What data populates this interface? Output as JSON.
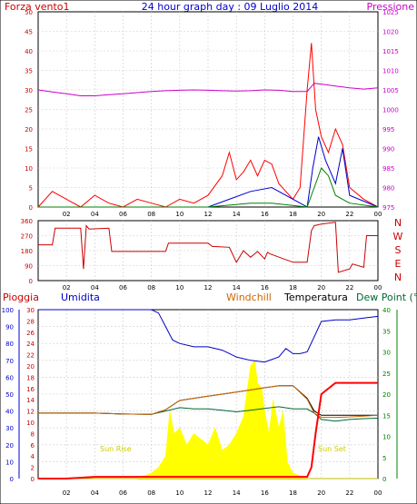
{
  "top_panel": {
    "left_title": "Forza vento1",
    "center_title": "24 hour graph day : 09 Luglio 2014",
    "right_title": "Pressione",
    "left_ticks": [
      "0",
      "5",
      "10",
      "15",
      "20",
      "25",
      "30",
      "35",
      "40",
      "45",
      "50"
    ],
    "right_ticks": [
      "975",
      "980",
      "985",
      "990",
      "995",
      "1000",
      "1005",
      "1010",
      "1015",
      "1020",
      "1025"
    ],
    "x_ticks": [
      "02",
      "04",
      "06",
      "08",
      "10",
      "12",
      "14",
      "16",
      "18",
      "20",
      "22",
      "00"
    ]
  },
  "mid_panel": {
    "left_ticks": [
      "0",
      "90",
      "180",
      "270",
      "360"
    ],
    "right_letters": [
      "N",
      "W",
      "S",
      "E",
      "N"
    ],
    "x_ticks": [
      "02",
      "04",
      "06",
      "08",
      "10",
      "12",
      "14",
      "16",
      "18",
      "20",
      "22",
      "00"
    ]
  },
  "bottom_panel": {
    "headers": {
      "rain": "Pioggia",
      "humidity": "Umidita",
      "windchill": "Windchill",
      "temperature": "Temperatura",
      "dewpoint": "Dew Point (°C"
    },
    "humidity_ticks": [
      "0",
      "10",
      "20",
      "30",
      "40",
      "50",
      "60",
      "70",
      "80",
      "90",
      "100"
    ],
    "rain_ticks": [
      "0",
      "2",
      "4",
      "6",
      "8",
      "10",
      "12",
      "14",
      "16",
      "18",
      "20",
      "22",
      "24",
      "26",
      "28",
      "30"
    ],
    "temp_ticks": [
      "0",
      "5",
      "10",
      "15",
      "20",
      "25",
      "30",
      "35",
      "40"
    ],
    "x_ticks": [
      "02",
      "04",
      "06",
      "08",
      "10",
      "12",
      "14",
      "16",
      "18",
      "20",
      "22",
      "00"
    ],
    "sun_rise": "Sun Rise",
    "sun_set": "Sun Set"
  },
  "colors": {
    "wind": "#ff0000",
    "gust": "#0000cc",
    "wind_alt": "#008000",
    "pressure": "#cc00cc",
    "direction": "#cc0000",
    "humidity": "#0000cc",
    "temperature": "#000000",
    "dewpoint": "#006633",
    "windchill": "#cc6600",
    "rain": "#ff0000",
    "solar": "#ffff00",
    "axis_humidity": "#0000cc",
    "axis_rain": "#cc0000",
    "axis_temp": "#008000"
  },
  "chart_data": [
    {
      "type": "line",
      "title": "24 hour graph day : 09 Luglio 2014",
      "x_hours": [
        0,
        24
      ],
      "left_axis": {
        "label": "Forza vento1",
        "ylim": [
          0,
          50
        ]
      },
      "right_axis": {
        "label": "Pressione",
        "ylim": [
          975,
          1025
        ]
      },
      "series": [
        {
          "name": "Pressione",
          "axis": "right",
          "x": [
            0,
            1,
            2,
            3,
            4,
            5,
            6,
            7,
            8,
            9,
            10,
            11,
            12,
            13,
            14,
            15,
            16,
            17,
            18,
            19,
            19.5,
            20,
            21,
            22,
            23,
            24
          ],
          "values": [
            1005,
            1004.5,
            1004,
            1003.5,
            1003.5,
            1003.8,
            1004,
            1004.3,
            1004.6,
            1004.8,
            1004.9,
            1005,
            1004.9,
            1004.8,
            1004.7,
            1004.8,
            1005,
            1004.9,
            1004.6,
            1004.6,
            1006.7,
            1006.5,
            1006,
            1005.5,
            1005.2,
            1005.5
          ]
        },
        {
          "name": "Forza vento1",
          "axis": "left",
          "x": [
            0,
            1,
            2,
            3,
            4,
            5,
            6,
            7,
            8,
            9,
            10,
            11,
            12,
            13,
            13.5,
            14,
            14.5,
            15,
            15.5,
            16,
            16.5,
            17,
            18,
            18.5,
            19,
            19.3,
            19.6,
            20,
            20.5,
            21,
            21.5,
            22,
            23,
            24
          ],
          "values": [
            0,
            4,
            2,
            0,
            3,
            1,
            0,
            2,
            1,
            0,
            2,
            1,
            3,
            8,
            14,
            7,
            9,
            12,
            8,
            12,
            11,
            6,
            2,
            5,
            30,
            42,
            25,
            18,
            14,
            20,
            16,
            5,
            2,
            0
          ]
        },
        {
          "name": "",
          "axis": "left",
          "x": [
            0,
            6,
            12,
            15,
            16.5,
            19,
            19.4,
            19.8,
            20.3,
            21,
            21.5,
            22,
            24
          ],
          "values": [
            0,
            0,
            0,
            4,
            5,
            0,
            10,
            18,
            12,
            6,
            15,
            3,
            0
          ]
        },
        {
          "name": "",
          "axis": "left",
          "x": [
            0,
            12,
            15,
            16.5,
            19,
            19.5,
            20,
            20.5,
            21,
            22,
            24
          ],
          "values": [
            0,
            0,
            1,
            1,
            0,
            5,
            10,
            8,
            3,
            1,
            0
          ]
        }
      ]
    },
    {
      "type": "line",
      "title": "",
      "x_hours": [
        0,
        24
      ],
      "ylim": [
        0,
        360
      ],
      "series": [
        {
          "name": "",
          "x": [
            0,
            1,
            1.2,
            3,
            3.2,
            3.4,
            3.6,
            5,
            5.2,
            9,
            9.2,
            12,
            12.3,
            13.5,
            14,
            14.5,
            15,
            15.5,
            16,
            16.2,
            16.4,
            18,
            18.2,
            19,
            19.3,
            19.5,
            20,
            21,
            21.2,
            22,
            22.2,
            23,
            23.2,
            24
          ],
          "values": [
            215,
            215,
            315,
            315,
            70,
            330,
            310,
            315,
            175,
            175,
            225,
            225,
            205,
            200,
            110,
            180,
            140,
            175,
            130,
            170,
            160,
            110,
            110,
            110,
            300,
            330,
            340,
            350,
            50,
            70,
            100,
            80,
            270,
            270
          ]
        }
      ]
    },
    {
      "type": "area",
      "title": "",
      "x_hours": [
        0,
        24
      ],
      "series": [
        {
          "name": "Umidita",
          "axis": "humidity",
          "ylim": [
            0,
            100
          ],
          "x": [
            0,
            2,
            4,
            6,
            8,
            8.5,
            9,
            9.5,
            10,
            11,
            12,
            13,
            14,
            15,
            16,
            17,
            17.5,
            18,
            18.5,
            19,
            19.5,
            20,
            21,
            22,
            23,
            24
          ],
          "values": [
            100,
            100,
            100,
            100,
            100,
            98,
            90,
            82,
            80,
            78,
            78,
            76,
            72,
            70,
            69,
            72,
            77,
            74,
            74,
            75,
            84,
            93,
            94,
            94,
            95,
            96
          ]
        },
        {
          "name": "Temperatura",
          "axis": "temp",
          "ylim": [
            0,
            40
          ],
          "x": [
            0,
            2,
            4,
            6,
            8,
            9,
            10,
            11,
            12,
            13,
            14,
            15,
            16,
            17,
            18,
            19,
            19.5,
            20,
            21,
            22,
            23,
            24
          ],
          "values": [
            15.5,
            15.5,
            15.5,
            15.3,
            15.2,
            16.3,
            18.5,
            19,
            19.5,
            20,
            20.5,
            21,
            21.5,
            22,
            22,
            19,
            16,
            15,
            15,
            15,
            15,
            15
          ]
        },
        {
          "name": "Dew Point (°C",
          "axis": "temp",
          "ylim": [
            0,
            40
          ],
          "x": [
            0,
            2,
            4,
            6,
            8,
            9,
            10,
            11,
            12,
            13,
            14,
            15,
            16,
            17,
            18,
            19,
            19.5,
            20,
            21,
            22,
            23,
            24
          ],
          "values": [
            15.5,
            15.5,
            15.5,
            15.3,
            15.2,
            16,
            16.8,
            16.5,
            16.5,
            16.2,
            15.8,
            16.2,
            16.6,
            17,
            16.5,
            16.5,
            15.5,
            14,
            13.6,
            14,
            14.2,
            14.3
          ]
        },
        {
          "name": "Windchill",
          "axis": "temp",
          "ylim": [
            0,
            40
          ],
          "x": [
            0,
            2,
            4,
            6,
            8,
            9,
            10,
            11,
            12,
            13,
            14,
            15,
            16,
            17,
            18,
            19,
            19.5,
            20,
            21,
            22,
            23,
            24
          ],
          "values": [
            15.5,
            15.5,
            15.5,
            15.3,
            15.2,
            16.3,
            18.5,
            19,
            19.5,
            20,
            20.5,
            21,
            21.5,
            22,
            22,
            18.8,
            15.5,
            14.5,
            14.5,
            14.6,
            14.8,
            15
          ]
        },
        {
          "name": "Pioggia",
          "axis": "rain",
          "ylim": [
            0,
            30
          ],
          "x": [
            0,
            2,
            4,
            6,
            8,
            10,
            12,
            14,
            16,
            18,
            19,
            19.3,
            19.6,
            20,
            21,
            22,
            23,
            24
          ],
          "values": [
            0,
            0,
            0.3,
            0.3,
            0.3,
            0.3,
            0.3,
            0.3,
            0.3,
            0.3,
            0.3,
            2,
            8,
            15,
            17,
            17,
            17,
            17
          ]
        },
        {
          "name": "solar",
          "axis": "rain",
          "ylim": [
            0,
            30
          ],
          "x": [
            0,
            7,
            7.5,
            8,
            8.5,
            9,
            9.3,
            9.6,
            10,
            10.5,
            11,
            11.5,
            12,
            12.5,
            13,
            13.5,
            14,
            14.5,
            15,
            15.3,
            15.5,
            15.8,
            16,
            16.3,
            16.6,
            17,
            17.3,
            17.6,
            18,
            18.5,
            19,
            24
          ],
          "values": [
            0,
            0,
            0.5,
            1,
            2,
            4,
            12,
            8,
            9,
            6,
            8,
            7,
            6,
            9,
            5,
            6,
            8,
            11,
            20,
            21,
            17,
            16,
            12,
            8,
            14,
            9,
            12,
            3,
            1,
            0.5,
            0,
            0
          ]
        }
      ]
    }
  ]
}
